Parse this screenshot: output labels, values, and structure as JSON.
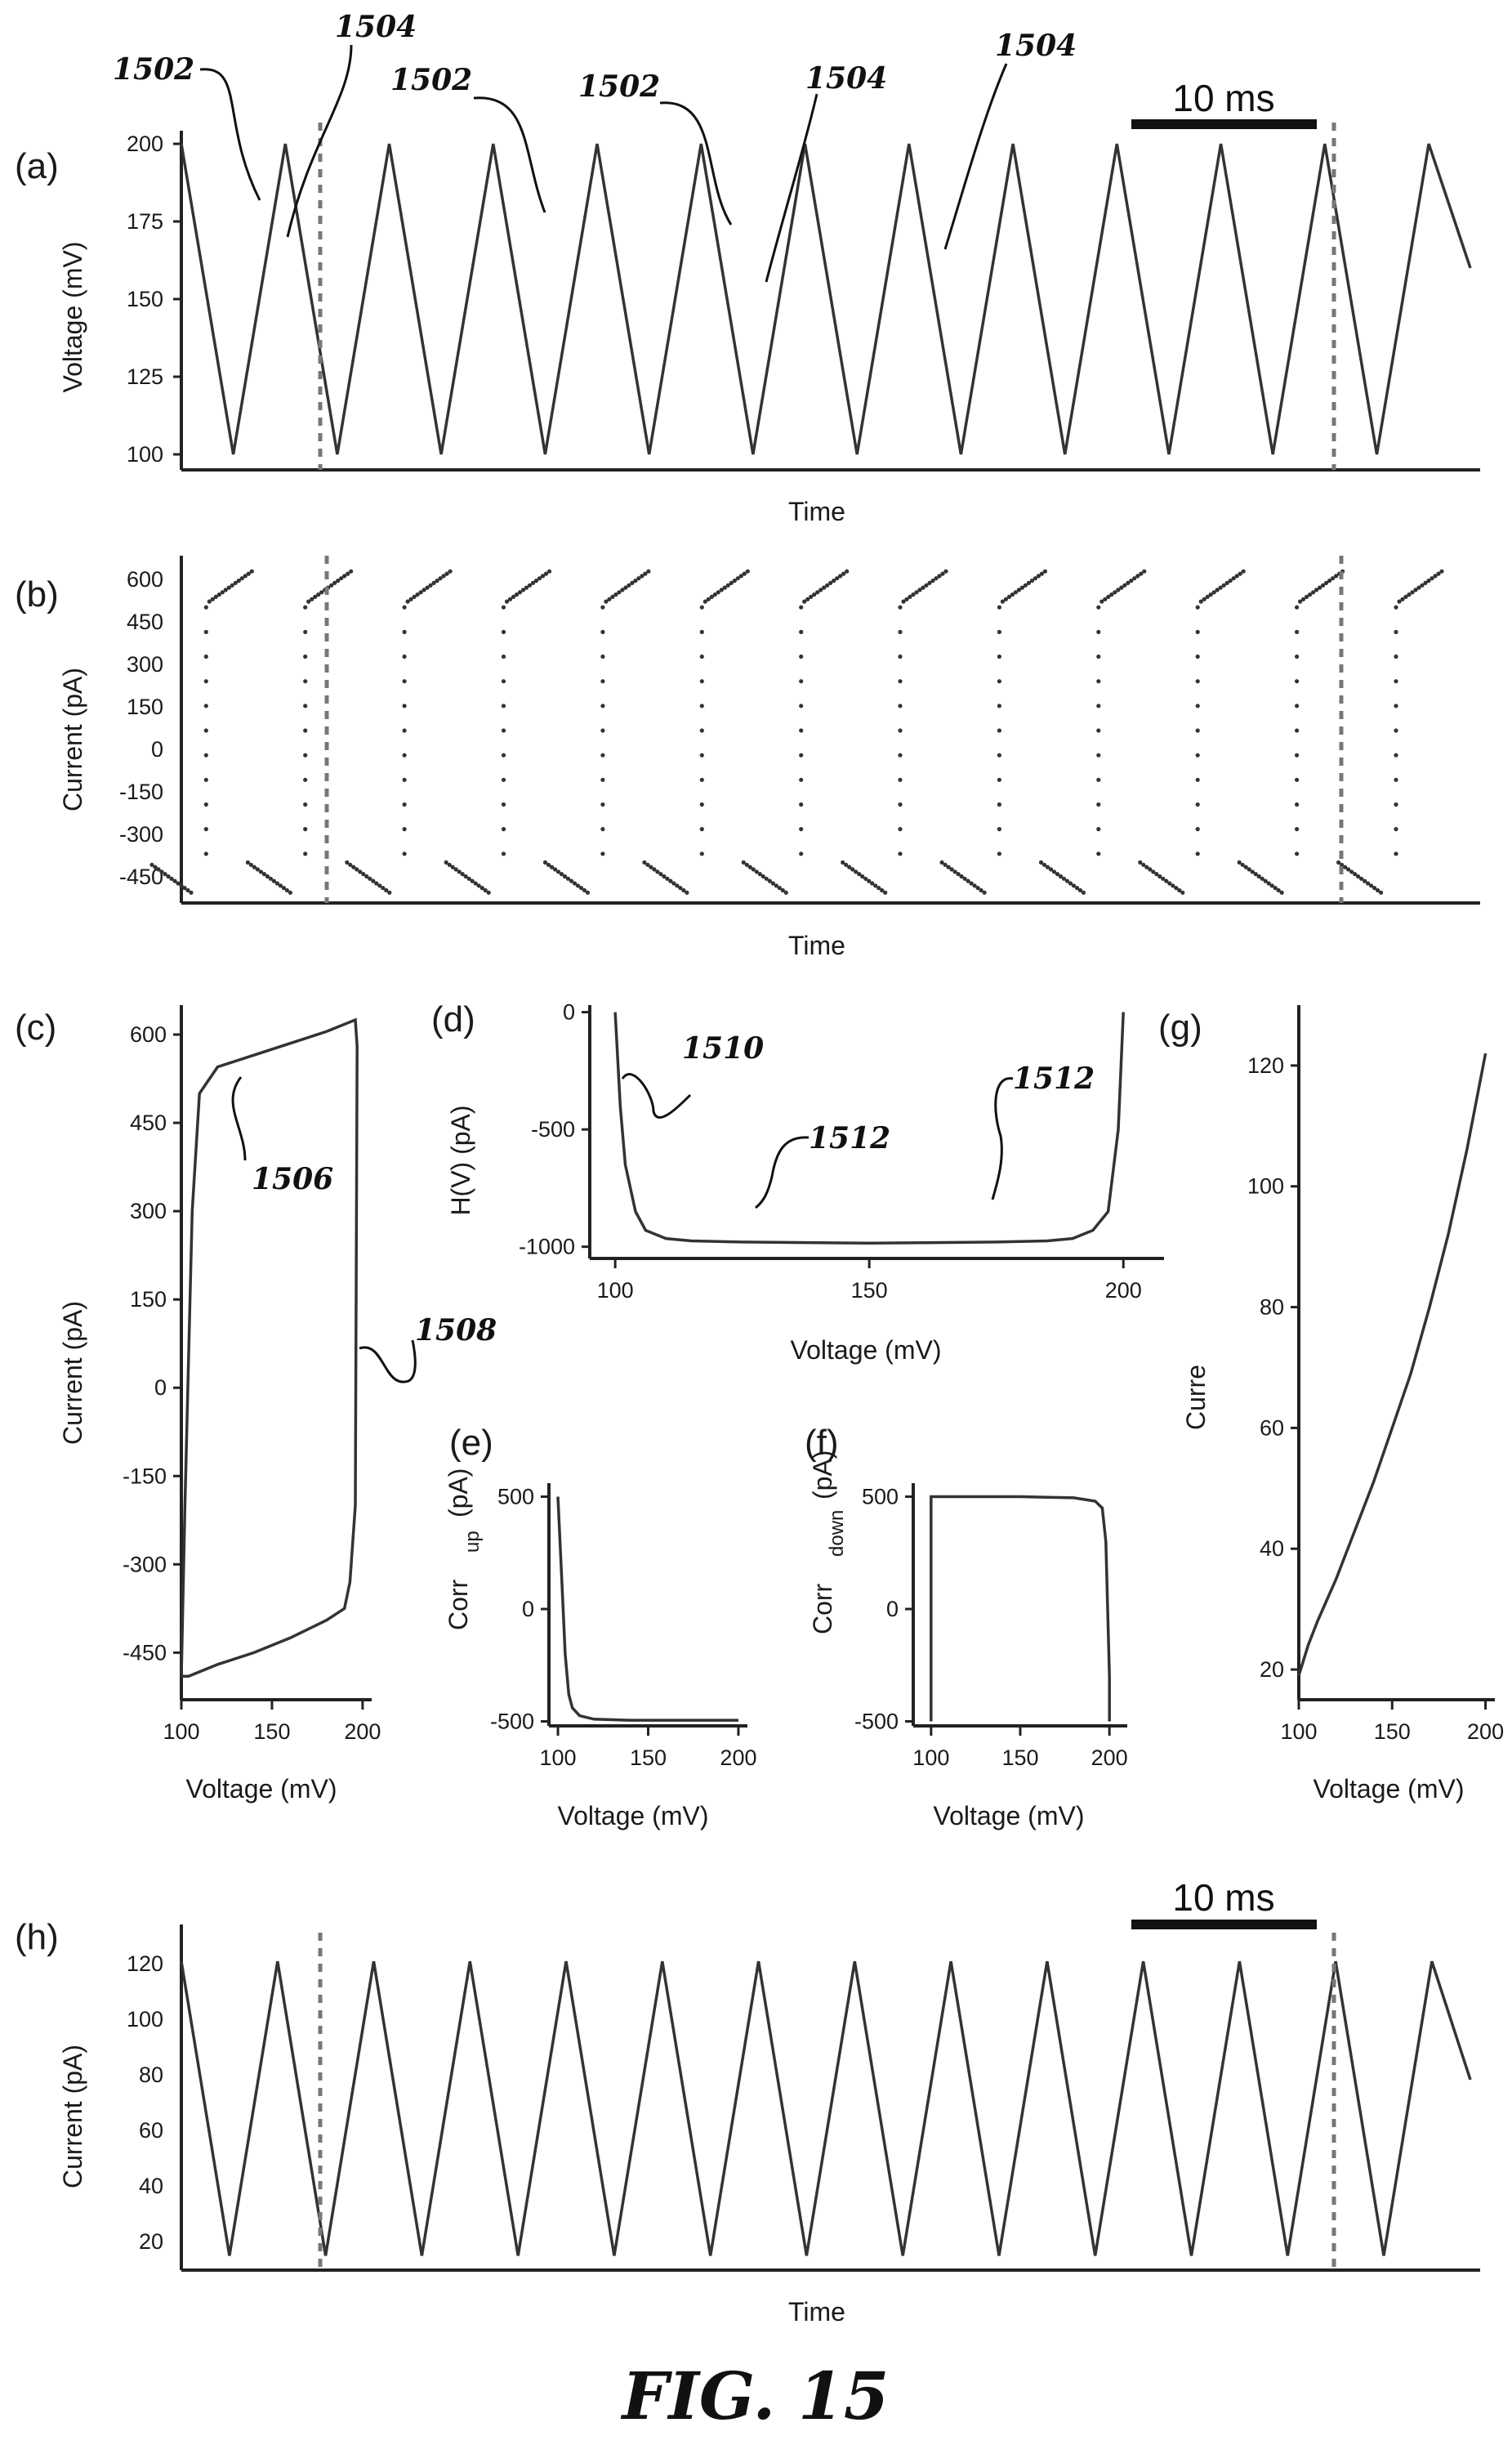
{
  "figure_label": "FIG. 15",
  "chart_data": [
    {
      "id": "a",
      "type": "line",
      "panel_label": "(a)",
      "xlabel": "Time",
      "ylabel": "Voltage (mV)",
      "y_ticks": [
        200,
        175,
        150,
        125,
        100
      ],
      "ylim": [
        100,
        200
      ],
      "x_tick_labels": false,
      "series": [
        {
          "waveform": "triangle",
          "min": 100,
          "max": 200,
          "peaks": 12
        }
      ],
      "scale_bar": "10 ms",
      "annotations": [
        "1502",
        "1504",
        "1502",
        "1502",
        "1504",
        "1504"
      ]
    },
    {
      "id": "b",
      "type": "scatter",
      "panel_label": "(b)",
      "xlabel": "Time",
      "ylabel": "Current (pA)",
      "y_ticks": [
        600,
        450,
        300,
        150,
        0,
        -150,
        -300,
        -450
      ],
      "ylim": [
        -500,
        650
      ],
      "x_tick_labels": false,
      "series": [
        {
          "waveform": "switching",
          "min": -500,
          "max": 650,
          "cycles": 13
        }
      ]
    },
    {
      "id": "c",
      "type": "line",
      "panel_label": "(c)",
      "xlabel": "Voltage (mV)",
      "ylabel": "Current (pA)",
      "x_ticks": [
        100,
        150,
        200
      ],
      "xlim": [
        100,
        205
      ],
      "y_ticks": [
        600,
        450,
        300,
        150,
        0,
        -150,
        -300,
        -450
      ],
      "ylim": [
        -530,
        650
      ],
      "series": [
        {
          "name": "",
          "x": [
            100,
            102,
            106,
            110,
            120,
            140,
            160,
            180,
            196,
            197,
            196,
            193,
            190,
            180,
            160,
            140,
            120,
            104,
            101,
            100
          ],
          "y": [
            -490,
            -200,
            300,
            500,
            545,
            565,
            585,
            605,
            625,
            580,
            -200,
            -330,
            -375,
            -395,
            -425,
            -450,
            -470,
            -490,
            -490,
            -490
          ]
        }
      ],
      "annotations": [
        "1506",
        "1508"
      ]
    },
    {
      "id": "d",
      "type": "line",
      "panel_label": "(d)",
      "xlabel": "Voltage (mV)",
      "ylabel": "H(V) (pA)",
      "x_ticks": [
        100,
        150,
        200
      ],
      "xlim": [
        95,
        208
      ],
      "y_ticks": [
        0,
        -500,
        -1000
      ],
      "ylim": [
        -1050,
        30
      ],
      "series": [
        {
          "name": "",
          "x": [
            100,
            101,
            102,
            104,
            106,
            110,
            115,
            125,
            150,
            175,
            185,
            190,
            194,
            197,
            199,
            200
          ],
          "y": [
            0,
            -400,
            -650,
            -850,
            -930,
            -965,
            -975,
            -980,
            -985,
            -980,
            -975,
            -965,
            -930,
            -850,
            -500,
            0
          ]
        }
      ],
      "annotations": [
        "1510",
        "1512",
        "1512"
      ]
    },
    {
      "id": "e",
      "type": "line",
      "panel_label": "(e)",
      "xlabel": "Voltage (mV)",
      "ylabel": "Corr",
      "ylabel_sub": "up",
      "ylabel_unit": "(pA)",
      "x_ticks": [
        100,
        150,
        200
      ],
      "xlim": [
        95,
        205
      ],
      "y_ticks": [
        500,
        0,
        -500
      ],
      "ylim": [
        -520,
        560
      ],
      "series": [
        {
          "name": "",
          "x": [
            100,
            102,
            104,
            106,
            108,
            112,
            120,
            140,
            160,
            180,
            200
          ],
          "y": [
            500,
            150,
            -200,
            -380,
            -440,
            -475,
            -490,
            -495,
            -495,
            -495,
            -495
          ]
        }
      ]
    },
    {
      "id": "f",
      "type": "line",
      "panel_label": "(f)",
      "xlabel": "Voltage (mV)",
      "ylabel": "Corr",
      "ylabel_sub": "down",
      "ylabel_unit": "(pA)",
      "x_ticks": [
        100,
        150,
        200
      ],
      "xlim": [
        90,
        210
      ],
      "y_ticks": [
        500,
        0,
        -500
      ],
      "ylim": [
        -520,
        560
      ],
      "series": [
        {
          "name": "",
          "x": [
            100,
            100,
            120,
            150,
            180,
            192,
            196,
            198,
            199,
            200,
            200
          ],
          "y": [
            -500,
            500,
            500,
            500,
            495,
            480,
            450,
            300,
            0,
            -300,
            -500
          ]
        }
      ]
    },
    {
      "id": "g",
      "type": "line",
      "panel_label": "(g)",
      "xlabel": "Voltage (mV)",
      "ylabel": "Curre",
      "x_ticks": [
        100,
        150,
        200
      ],
      "xlim": [
        100,
        205
      ],
      "y_ticks": [
        120,
        100,
        80,
        60,
        40,
        20
      ],
      "ylim": [
        15,
        130
      ],
      "series": [
        {
          "name": "",
          "x": [
            100,
            105,
            110,
            120,
            130,
            140,
            150,
            160,
            170,
            180,
            190,
            200
          ],
          "y": [
            19,
            24,
            28,
            35,
            43,
            51,
            60,
            69,
            80,
            92,
            106,
            122
          ]
        }
      ]
    },
    {
      "id": "h",
      "type": "line",
      "panel_label": "(h)",
      "xlabel": "Time",
      "ylabel": "Current (pA)",
      "y_ticks": [
        120,
        100,
        80,
        60,
        40,
        20
      ],
      "ylim": [
        15,
        130
      ],
      "x_tick_labels": false,
      "series": [
        {
          "waveform": "triangle",
          "min": 20,
          "max": 122,
          "peaks": 13
        }
      ],
      "scale_bar": "10 ms"
    }
  ]
}
